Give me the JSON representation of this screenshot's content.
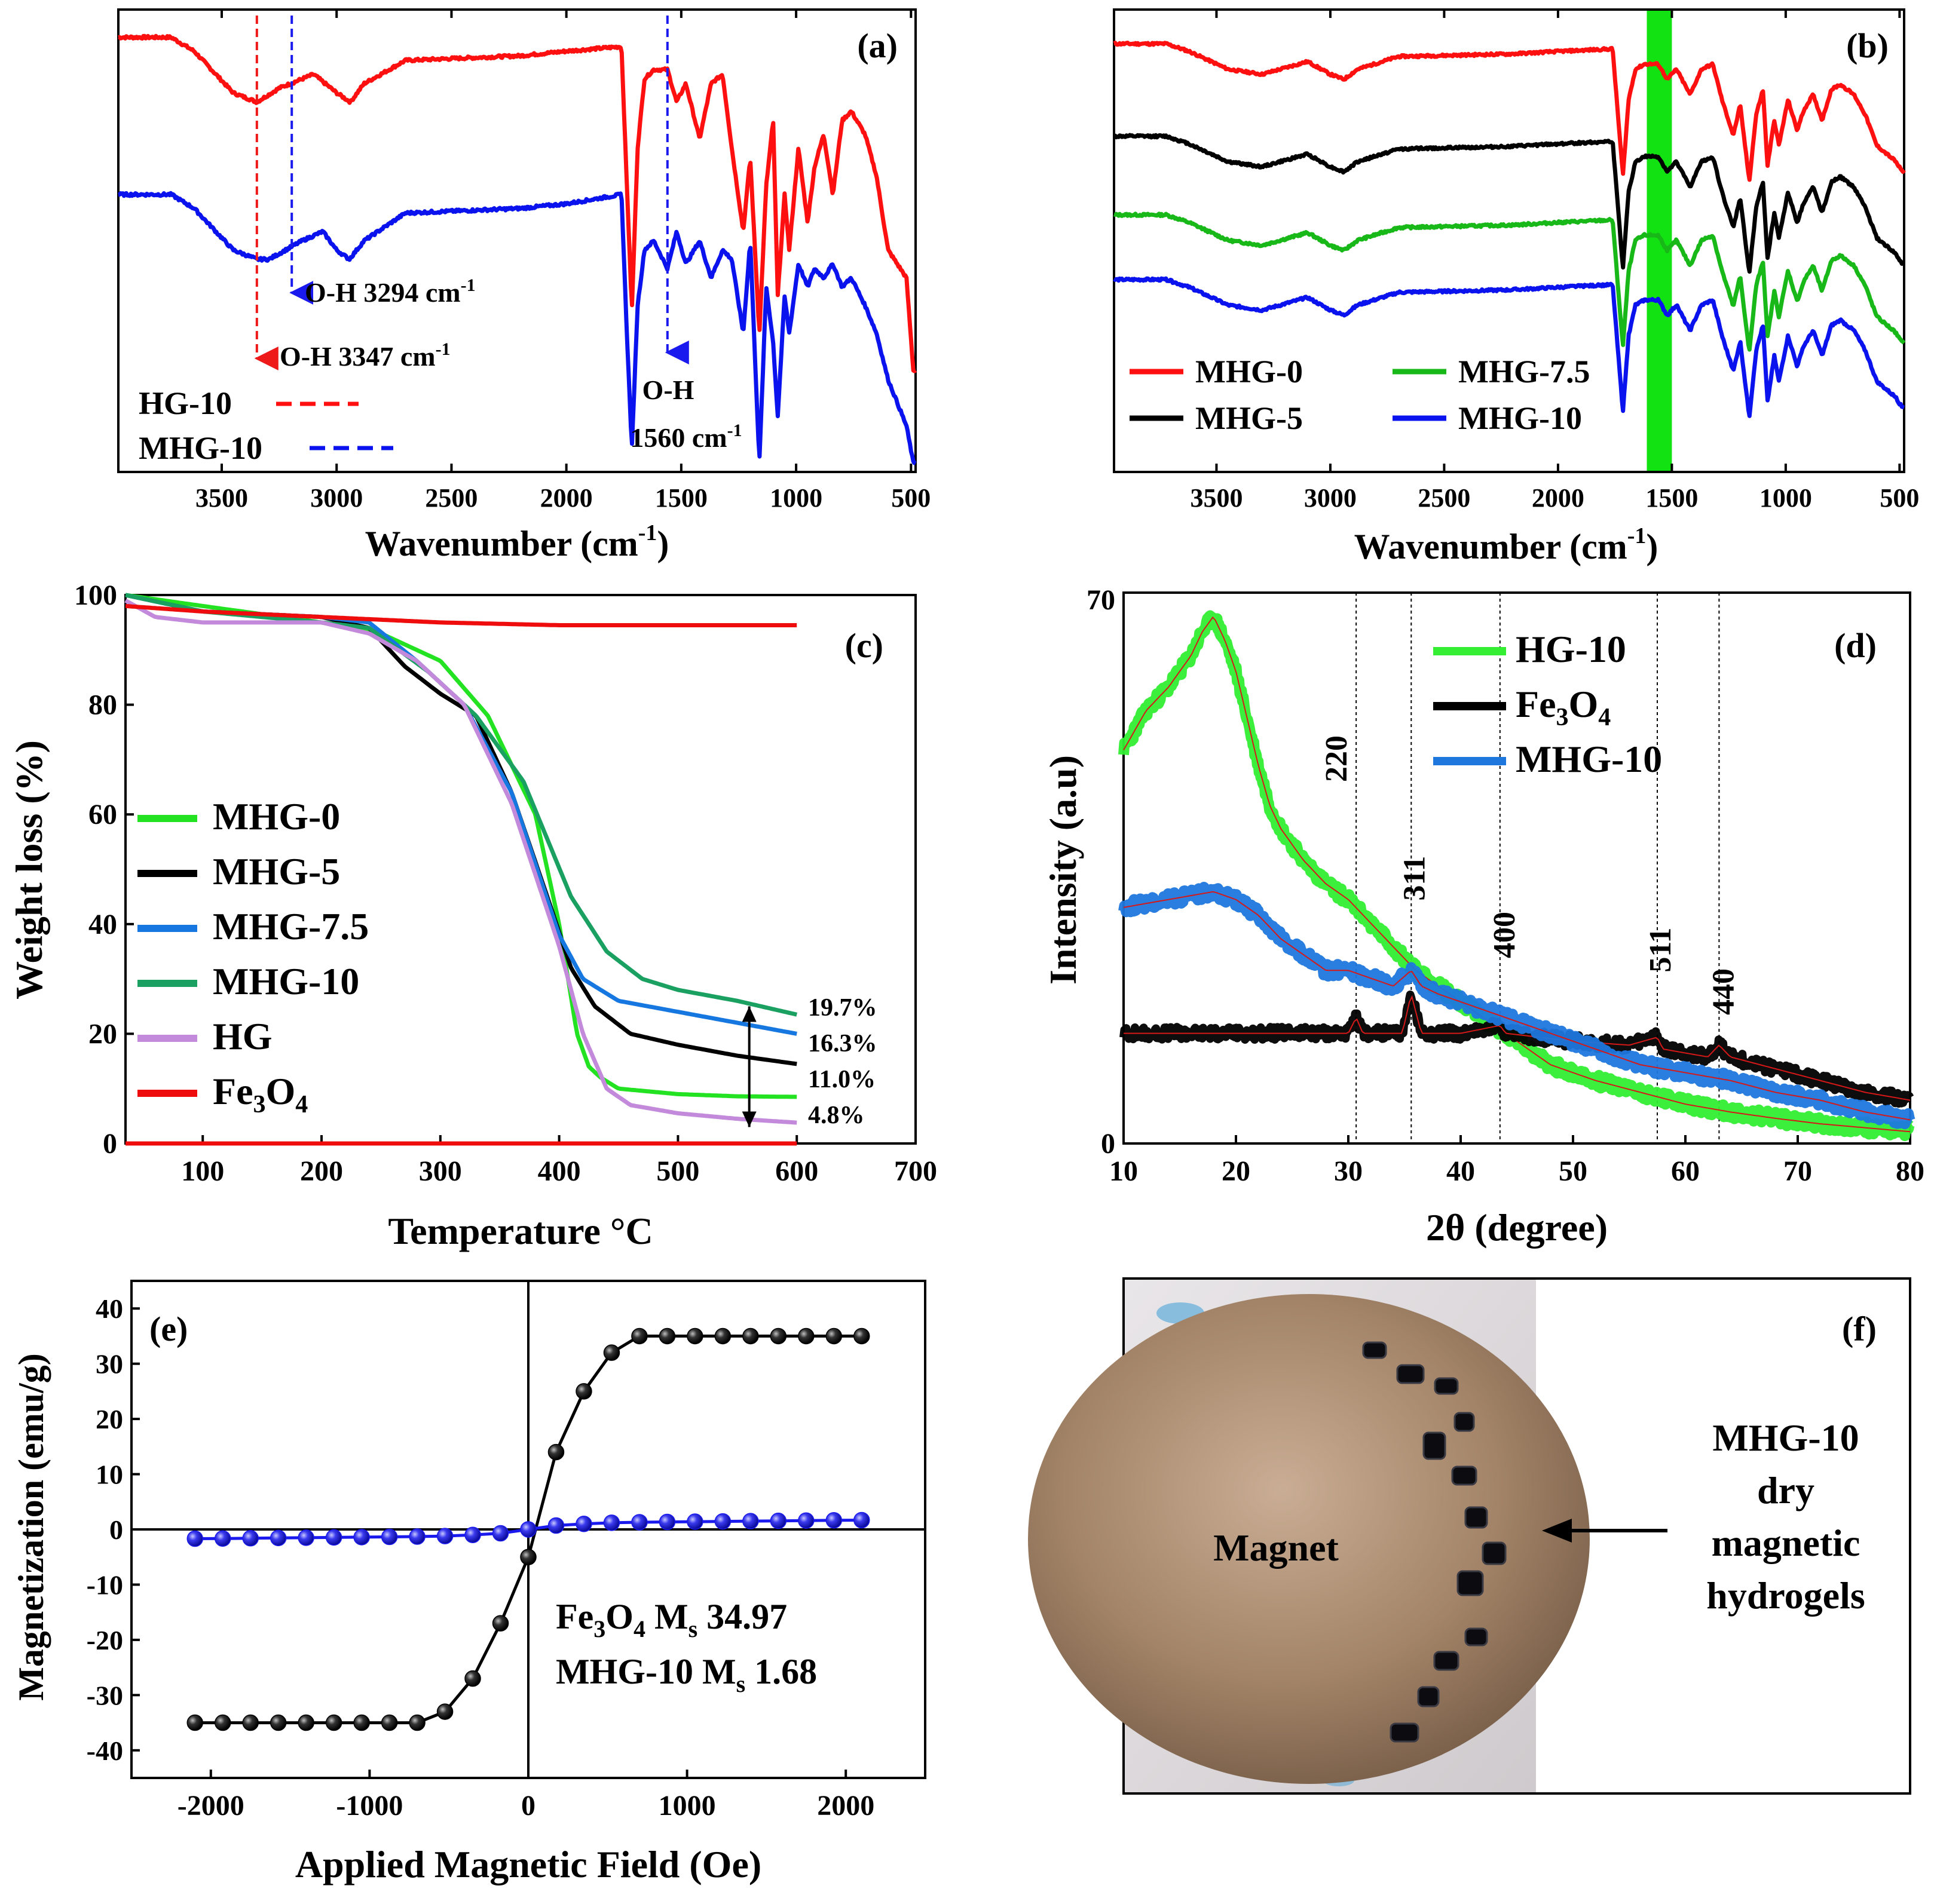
{
  "figure": {
    "panels": [
      "(a)",
      "(b)",
      "(c)",
      "(d)",
      "(e)",
      "(f)"
    ]
  },
  "chart_data": [
    {
      "id": "a",
      "type": "line",
      "panel_label": "(a)",
      "xlabel": "Wavenumber (cm",
      "xlabel_sup": "-1",
      "xlabel_end": ")",
      "ylabel": "",
      "xlim": [
        3950,
        480
      ],
      "ylim": [
        0,
        100
      ],
      "xticks": [
        3500,
        3000,
        2500,
        2000,
        1500,
        1000,
        500
      ],
      "series": [
        {
          "name": "HG-10",
          "color": "#ff1010",
          "x": [
            3950,
            3720,
            3620,
            3450,
            3347,
            3250,
            3100,
            3000,
            2940,
            2880,
            2700,
            2200,
            2000,
            1760,
            1735,
            1715,
            1690,
            1660,
            1620,
            1560,
            1520,
            1480,
            1420,
            1370,
            1320,
            1280,
            1230,
            1200,
            1160,
            1130,
            1100,
            1080,
            1050,
            1030,
            990,
            950,
            920,
            880,
            840,
            800,
            760,
            700,
            650,
            600,
            520,
            490
          ],
          "y": [
            94,
            94,
            91,
            82,
            80,
            83,
            86,
            82,
            80,
            84,
            89,
            90,
            91,
            92,
            60,
            35,
            70,
            85,
            87,
            87,
            80,
            84,
            72,
            84,
            86,
            70,
            52,
            68,
            30,
            62,
            76,
            38,
            60,
            48,
            70,
            54,
            66,
            73,
            60,
            76,
            78,
            73,
            64,
            48,
            42,
            22
          ]
        },
        {
          "name": "MHG-10",
          "color": "#0a12ee",
          "x": [
            3950,
            3720,
            3620,
            3450,
            3347,
            3294,
            3150,
            3060,
            3000,
            2945,
            2880,
            2700,
            2200,
            2000,
            1760,
            1735,
            1715,
            1690,
            1660,
            1620,
            1560,
            1520,
            1480,
            1420,
            1370,
            1320,
            1280,
            1230,
            1200,
            1160,
            1130,
            1100,
            1080,
            1050,
            1030,
            990,
            950,
            920,
            880,
            840,
            800,
            760,
            700,
            650,
            600,
            520,
            490
          ],
          "y": [
            60,
            60,
            57,
            48,
            46,
            46,
            50,
            52,
            48,
            46,
            50,
            56,
            57,
            58,
            60,
            28,
            5,
            36,
            48,
            50,
            44,
            52,
            45,
            50,
            42,
            48,
            46,
            30,
            50,
            2,
            40,
            28,
            12,
            38,
            30,
            45,
            40,
            44,
            42,
            45,
            40,
            42,
            36,
            30,
            20,
            10,
            2
          ]
        }
      ],
      "annotations": [
        {
          "text": "O-H 3294 cm",
          "sup": "-1",
          "at": 3294,
          "color": "#1a1aee"
        },
        {
          "text": "O-H 3347 cm",
          "sup": "-1",
          "at": 3347,
          "color": "#ee1a1a"
        },
        {
          "text": "O-H",
          "line2": "1560 cm",
          "sup": "-1",
          "at": 1560
        }
      ],
      "legend": "bottom-left"
    },
    {
      "id": "b",
      "type": "line",
      "panel_label": "(b)",
      "xlabel": "Wavenumber (cm",
      "xlabel_sup": "-1",
      "xlabel_end": ")",
      "xlim": [
        3950,
        480
      ],
      "ylim": [
        0,
        100
      ],
      "xticks": [
        3500,
        3000,
        2500,
        2000,
        1500,
        1000,
        500
      ],
      "highlight_band": [
        1610,
        1500
      ],
      "series": [
        {
          "name": "MHG-0",
          "color": "#ff1010",
          "offset": 0
        },
        {
          "name": "MHG-5",
          "color": "#000000",
          "offset": -20
        },
        {
          "name": "MHG-7.5",
          "color": "#18b818",
          "offset": -37
        },
        {
          "name": "MHG-10",
          "color": "#0a12ee",
          "offset": -51
        }
      ],
      "base_profile": {
        "x": [
          3950,
          3720,
          3620,
          3450,
          3300,
          3100,
          3000,
          2940,
          2880,
          2700,
          2200,
          2000,
          1760,
          1735,
          1715,
          1690,
          1660,
          1620,
          1560,
          1520,
          1480,
          1420,
          1370,
          1320,
          1280,
          1230,
          1200,
          1160,
          1130,
          1100,
          1080,
          1050,
          1030,
          990,
          950,
          920,
          880,
          840,
          800,
          760,
          700,
          650,
          600,
          520,
          490
        ],
        "y": [
          92,
          92,
          89,
          82,
          80,
          85,
          80,
          78,
          82,
          87,
          88,
          89,
          90,
          62,
          40,
          70,
          82,
          84,
          84,
          78,
          82,
          72,
          82,
          84,
          70,
          56,
          68,
          38,
          64,
          74,
          44,
          62,
          52,
          70,
          58,
          66,
          72,
          62,
          74,
          76,
          72,
          64,
          52,
          46,
          42
        ]
      },
      "legend": "bottom-left"
    },
    {
      "id": "c",
      "type": "line",
      "panel_label": "(c)",
      "xlabel": "Temperature °C",
      "ylabel": "Weight loss (%)",
      "xlim": [
        35,
        700
      ],
      "ylim": [
        0,
        100
      ],
      "xticks": [
        100,
        200,
        300,
        400,
        500,
        600,
        700
      ],
      "yticks": [
        0,
        20,
        40,
        60,
        80,
        100
      ],
      "series": [
        {
          "name": "MHG-0",
          "color": "#22e222",
          "x": [
            35,
            100,
            200,
            250,
            300,
            340,
            380,
            400,
            415,
            425,
            435,
            450,
            500,
            550,
            600
          ],
          "y": [
            100,
            98,
            95,
            93,
            88,
            78,
            60,
            40,
            20,
            14,
            12,
            10,
            9,
            8.6,
            8.5
          ]
        },
        {
          "name": "MHG-5",
          "color": "#000000",
          "x": [
            35,
            100,
            200,
            240,
            270,
            300,
            330,
            360,
            390,
            410,
            430,
            460,
            500,
            550,
            600
          ],
          "y": [
            100,
            97,
            96,
            94,
            87,
            82,
            78,
            64,
            45,
            32,
            25,
            20,
            18,
            16,
            14.5
          ]
        },
        {
          "name": "MHG-7.5",
          "color": "#1777e0",
          "x": [
            35,
            100,
            200,
            240,
            280,
            320,
            360,
            400,
            420,
            450,
            500,
            550,
            600
          ],
          "y": [
            100,
            97,
            96,
            95,
            88,
            80,
            64,
            38,
            30,
            26,
            24,
            22,
            20
          ]
        },
        {
          "name": "MHG-10",
          "color": "#1aa060",
          "x": [
            35,
            100,
            200,
            240,
            290,
            330,
            370,
            410,
            440,
            470,
            500,
            550,
            600
          ],
          "y": [
            100,
            97,
            95,
            94,
            86,
            78,
            66,
            45,
            35,
            30,
            28,
            26,
            23.5
          ]
        },
        {
          "name": "HG",
          "color": "#c38adb",
          "x": [
            35,
            60,
            100,
            200,
            240,
            280,
            320,
            360,
            400,
            420,
            440,
            460,
            500,
            550,
            600
          ],
          "y": [
            99,
            96,
            95,
            95,
            93,
            88,
            80,
            62,
            36,
            20,
            10,
            7,
            5.5,
            4.5,
            3.8
          ]
        },
        {
          "name": "Fe3O4",
          "color": "#ee0c0c",
          "x": [
            35,
            100,
            200,
            300,
            400,
            500,
            600
          ],
          "y": [
            98,
            97,
            96,
            95,
            94.5,
            94.5,
            94.5
          ]
        },
        {
          "name": "zero",
          "color": "#ee0c0c",
          "x": [
            35,
            600
          ],
          "y": [
            0,
            0
          ]
        }
      ],
      "legend_labels": [
        {
          "name": "MHG-0",
          "color": "#22e222"
        },
        {
          "name": "MHG-5",
          "color": "#000000"
        },
        {
          "name": "MHG-7.5",
          "color": "#1777e0"
        },
        {
          "name": "MHG-10",
          "color": "#1aa060"
        },
        {
          "name": "HG",
          "color": "#c38adb"
        },
        {
          "name": "Fe",
          "sub": "3",
          "after": "O",
          "sub2": "4",
          "color": "#ee0c0c"
        }
      ],
      "end_labels": [
        "19.7%",
        "16.3%",
        "11.0%",
        "4.8%"
      ],
      "arrow": {
        "x": 560,
        "y1": 25,
        "y2": 3
      }
    },
    {
      "id": "d",
      "type": "line",
      "panel_label": "(d)",
      "xlabel": "2θ (degree)",
      "ylabel": "Intensity (a.u)",
      "xlim": [
        10,
        80
      ],
      "ylim": [
        0,
        70
      ],
      "xticks": [
        10,
        20,
        30,
        40,
        50,
        60,
        70,
        80
      ],
      "ytick_labels": [
        "0",
        "70"
      ],
      "peak_lines": [
        30.7,
        35.6,
        43.5,
        57.5,
        63.0
      ],
      "peak_labels": [
        "220",
        "311",
        "400",
        "511",
        "440"
      ],
      "series": [
        {
          "name": "HG-10",
          "color": "#33ee33",
          "x": [
            10,
            12,
            14,
            16,
            17,
            18,
            19,
            20,
            21,
            22,
            23,
            24,
            26,
            28,
            30,
            32,
            34,
            36,
            38,
            40,
            44,
            48,
            52,
            56,
            60,
            64,
            68,
            72,
            76,
            80
          ],
          "y": [
            50,
            55,
            58,
            62,
            65,
            67,
            64,
            60,
            54,
            48,
            43,
            40,
            36,
            33,
            31,
            28,
            25,
            22,
            20,
            18,
            14,
            10,
            8,
            6.5,
            5,
            4,
            3.2,
            2.5,
            2,
            1.5
          ]
        },
        {
          "name": "Fe3O4",
          "color": "#000000",
          "x": [
            10,
            20,
            30,
            30.7,
            31.3,
            34.8,
            35.6,
            36.5,
            40,
            43.5,
            44,
            50,
            55,
            57.5,
            58,
            62,
            63,
            64,
            68,
            72,
            76,
            80
          ],
          "y": [
            14,
            14,
            14,
            16,
            14,
            14,
            19,
            14,
            14,
            15,
            14,
            13,
            12.5,
            13.5,
            12,
            11,
            12.5,
            11,
            9.5,
            8,
            6.5,
            5.5
          ]
        },
        {
          "name": "MHG-10",
          "color": "#1d77dd",
          "x": [
            10,
            14,
            18,
            20,
            22,
            24,
            26,
            28,
            30,
            32,
            34,
            35.6,
            36.5,
            38,
            40,
            44,
            48,
            52,
            56,
            60,
            64,
            68,
            72,
            76,
            80
          ],
          "y": [
            30,
            31,
            32,
            31,
            29,
            26,
            24,
            22,
            22,
            21,
            20,
            22,
            20,
            19,
            18,
            16,
            14,
            12,
            10,
            9,
            8,
            6.5,
            5.5,
            4,
            3
          ]
        }
      ],
      "legend_labels": [
        {
          "name": "HG-10",
          "color": "#33ee33"
        },
        {
          "name": "Fe",
          "sub": "3",
          "after": "O",
          "sub2": "4",
          "color": "#000000"
        },
        {
          "name": "MHG-10",
          "color": "#1d77dd"
        }
      ]
    },
    {
      "id": "e",
      "type": "scatter",
      "panel_label": "(e)",
      "xlabel": "Applied Magnetic Field (Oe)",
      "ylabel": "Magnetization (emu/g)",
      "xlim": [
        -2500,
        2500
      ],
      "ylim": [
        -45,
        45
      ],
      "xticks": [
        -2000,
        -1000,
        0,
        1000,
        2000
      ],
      "yticks": [
        -40,
        -30,
        -20,
        -10,
        0,
        10,
        20,
        30,
        40
      ],
      "series": [
        {
          "name": "Fe3O4",
          "color": "#000000",
          "x": [
            -2100,
            -1925,
            -1750,
            -1575,
            -1400,
            -1225,
            -1050,
            -875,
            -700,
            -525,
            -350,
            -175,
            0,
            175,
            350,
            525,
            700,
            875,
            1050,
            1225,
            1400,
            1575,
            1750,
            1925,
            2100
          ],
          "y": [
            -35,
            -35,
            -35,
            -35,
            -35,
            -35,
            -35,
            -35,
            -35,
            -33,
            -27,
            -17,
            -5,
            14,
            25,
            32,
            35,
            35,
            35,
            35,
            35,
            35,
            35,
            35,
            35
          ]
        },
        {
          "name": "MHG-10",
          "color": "#1a1aee",
          "x": [
            -2100,
            -1925,
            -1750,
            -1575,
            -1400,
            -1225,
            -1050,
            -875,
            -700,
            -525,
            -350,
            -175,
            0,
            175,
            350,
            525,
            700,
            875,
            1050,
            1225,
            1400,
            1575,
            1750,
            1925,
            2100
          ],
          "y": [
            -1.68,
            -1.65,
            -1.6,
            -1.55,
            -1.5,
            -1.45,
            -1.4,
            -1.35,
            -1.3,
            -1.2,
            -1.0,
            -0.7,
            0,
            0.7,
            1.0,
            1.2,
            1.3,
            1.35,
            1.4,
            1.45,
            1.5,
            1.55,
            1.6,
            1.65,
            1.68
          ]
        }
      ],
      "annotations": [
        {
          "text": "Fe",
          "sub": "3",
          "after": "O",
          "sub2": "4",
          "tail": "  M",
          "sub3": "s",
          "tail2": " 34.97",
          "color": "#000000"
        },
        {
          "text": "MHG-10 M",
          "sub": "s",
          "tail": " 1.68",
          "color": "#1a1aee"
        }
      ]
    },
    {
      "id": "f",
      "type": "photo",
      "panel_label": "(f)",
      "labels": {
        "magnet": "Magnet",
        "side": [
          "MHG-10",
          "dry",
          "magnetic",
          "hydrogels"
        ]
      }
    }
  ]
}
